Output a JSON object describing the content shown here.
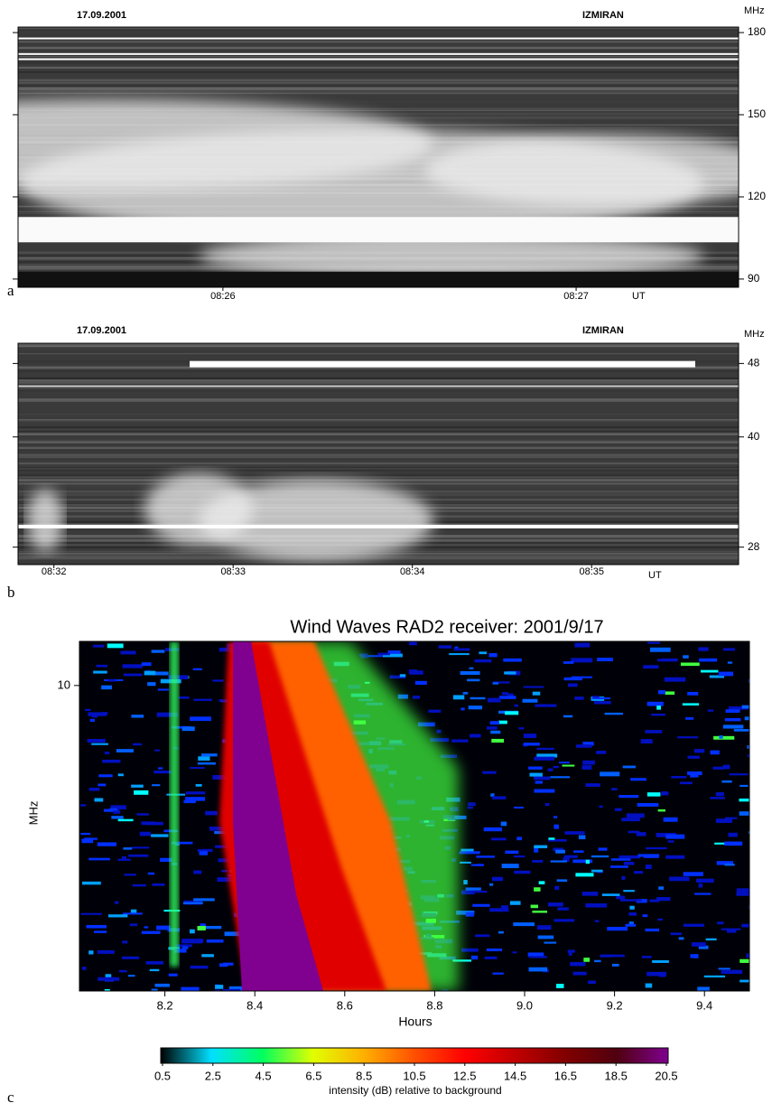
{
  "chart_data": [
    {
      "type": "spectrogram",
      "panel": "a",
      "date": "17.09.2001",
      "station": "IZMIRAN",
      "ylabel": "MHz",
      "time_unit": "UT",
      "ylim": [
        87,
        182
      ],
      "yticks": [
        90,
        120,
        150,
        180
      ],
      "xlim": [
        505.42,
        507.46
      ],
      "xticks": [
        {
          "value": 506,
          "label": "08:26"
        },
        {
          "value": 507,
          "label": "08:27"
        }
      ]
    },
    {
      "type": "spectrogram",
      "panel": "b",
      "date": "17.09.2001",
      "station": "IZMIRAN",
      "ylabel": "MHz",
      "time_unit": "UT",
      "ylim": [
        26.1,
        50.2
      ],
      "yticks": [
        28,
        40,
        48
      ],
      "xlim": [
        511.8,
        515.82
      ],
      "xticks": [
        {
          "value": 512,
          "label": "08:32"
        },
        {
          "value": 513,
          "label": "08:33"
        },
        {
          "value": 514,
          "label": "08:34"
        },
        {
          "value": 515,
          "label": "08:35"
        }
      ]
    },
    {
      "type": "colorspectrogram",
      "panel": "c",
      "title": "Wind Waves RAD2 receiver: 2001/9/17",
      "xlabel": "Hours",
      "ylabel": "MHz",
      "xlim": [
        8.01,
        9.5
      ],
      "xticks": [
        8.2,
        8.4,
        8.6,
        8.8,
        {
          "value": 9,
          "label": "9.0"
        },
        9.2,
        9.4
      ],
      "ylim": [
        1.075,
        13.8
      ],
      "yticks": [
        10
      ],
      "log_y": true,
      "colorbar": {
        "label": "intensity (dB) relative to background",
        "lim": [
          0.5,
          20.5
        ],
        "ticks": [
          0.5,
          2.5,
          4.5,
          6.5,
          8.5,
          10.5,
          12.5,
          14.5,
          16.5,
          18.5,
          20.5
        ],
        "colors": [
          "#000000",
          "#00e0ff",
          "#00ff60",
          "#e0ff00",
          "#ffb000",
          "#ff5000",
          "#ff0000",
          "#c00000",
          "#800000",
          "#500010",
          "#800090"
        ]
      }
    }
  ]
}
